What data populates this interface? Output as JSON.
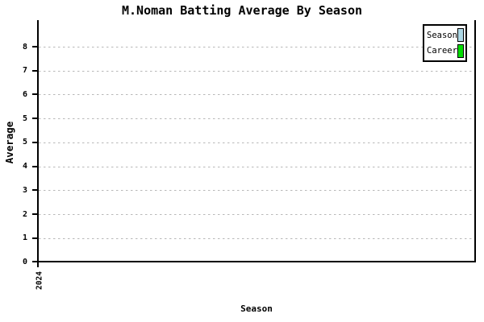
{
  "chart": {
    "title": "M.Noman Batting Average By Season",
    "y_axis_title": "Average",
    "x_axis_title": "Season"
  },
  "chart_data": {
    "type": "bar",
    "title": "M.Noman Batting Average By Season",
    "xlabel": "Season",
    "ylabel": "Average",
    "categories": [
      "2024"
    ],
    "series": [
      {
        "name": "Season",
        "color": "#ADD8E6",
        "values": [
          null
        ]
      },
      {
        "name": "Career",
        "color": "#00DD00",
        "values": [
          null
        ]
      }
    ],
    "bars_visible": false,
    "y_tick_labels_top_to_bottom": [
      "8",
      "7",
      "6",
      "5",
      "5",
      "4",
      "3",
      "2",
      "1",
      "0"
    ],
    "x_tick_labels": [
      "2024"
    ],
    "grid": "dashed-horizontal",
    "legend_position": "top-right"
  },
  "legend": {
    "items": [
      {
        "label": "Season",
        "color": "#ADD8E6"
      },
      {
        "label": "Career",
        "color": "#00DD00"
      }
    ]
  },
  "colors": {
    "axis": "#000000",
    "gridline": "#b8b8b8",
    "background": "#ffffff",
    "text": "#000000"
  }
}
